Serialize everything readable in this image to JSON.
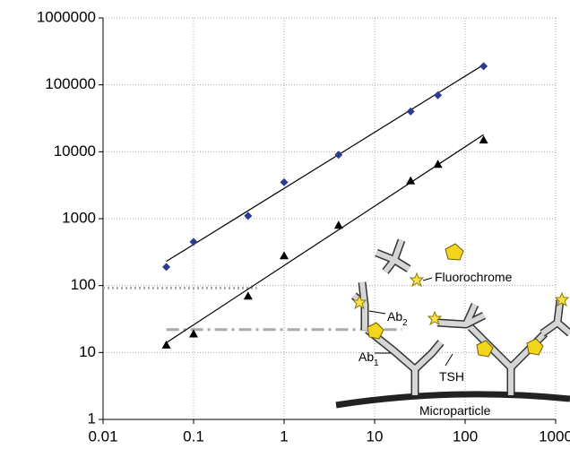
{
  "chart_data": {
    "type": "scatter",
    "xscale": "log",
    "yscale": "log",
    "xlim": [
      0.01,
      1000
    ],
    "ylim": [
      1,
      1000000
    ],
    "xticks": [
      0.01,
      0.1,
      1,
      10,
      100,
      1000
    ],
    "yticks": [
      1,
      10,
      100,
      1000,
      10000,
      100000,
      1000000
    ],
    "grid": true,
    "series": [
      {
        "color": "#2b3a92",
        "marker": "diamond",
        "x": [
          0.05,
          0.1,
          0.4,
          1,
          4,
          25,
          50,
          160
        ],
        "values": [
          190,
          450,
          1100,
          3500,
          9000,
          40000,
          70000,
          190000
        ]
      },
      {
        "color": "#000000",
        "marker": "triangle",
        "x": [
          0.05,
          0.1,
          0.4,
          1,
          4,
          25,
          50,
          160
        ],
        "values": [
          13,
          19,
          70,
          280,
          800,
          3700,
          6500,
          15000
        ]
      }
    ],
    "fits": [
      {
        "color": "#000000",
        "x": [
          0.05,
          160
        ],
        "values": [
          230,
          200000
        ]
      },
      {
        "color": "#000000",
        "x": [
          0.05,
          160
        ],
        "values": [
          14,
          18000
        ]
      }
    ],
    "reference_lines": [
      {
        "color": "#aaaaaa",
        "style": "dotted",
        "y": 92,
        "x": [
          0.01,
          0.5
        ]
      },
      {
        "color": "#aaaaaa",
        "style": "dashdot",
        "y": 22,
        "x": [
          0.05,
          20
        ]
      }
    ],
    "annotations": [
      {
        "text": "Fluorochrome"
      },
      {
        "text": "Ab",
        "sub": "2"
      },
      {
        "text": "Ab",
        "sub": "1"
      },
      {
        "text": "TSH"
      },
      {
        "text": "Microparticle"
      }
    ]
  }
}
